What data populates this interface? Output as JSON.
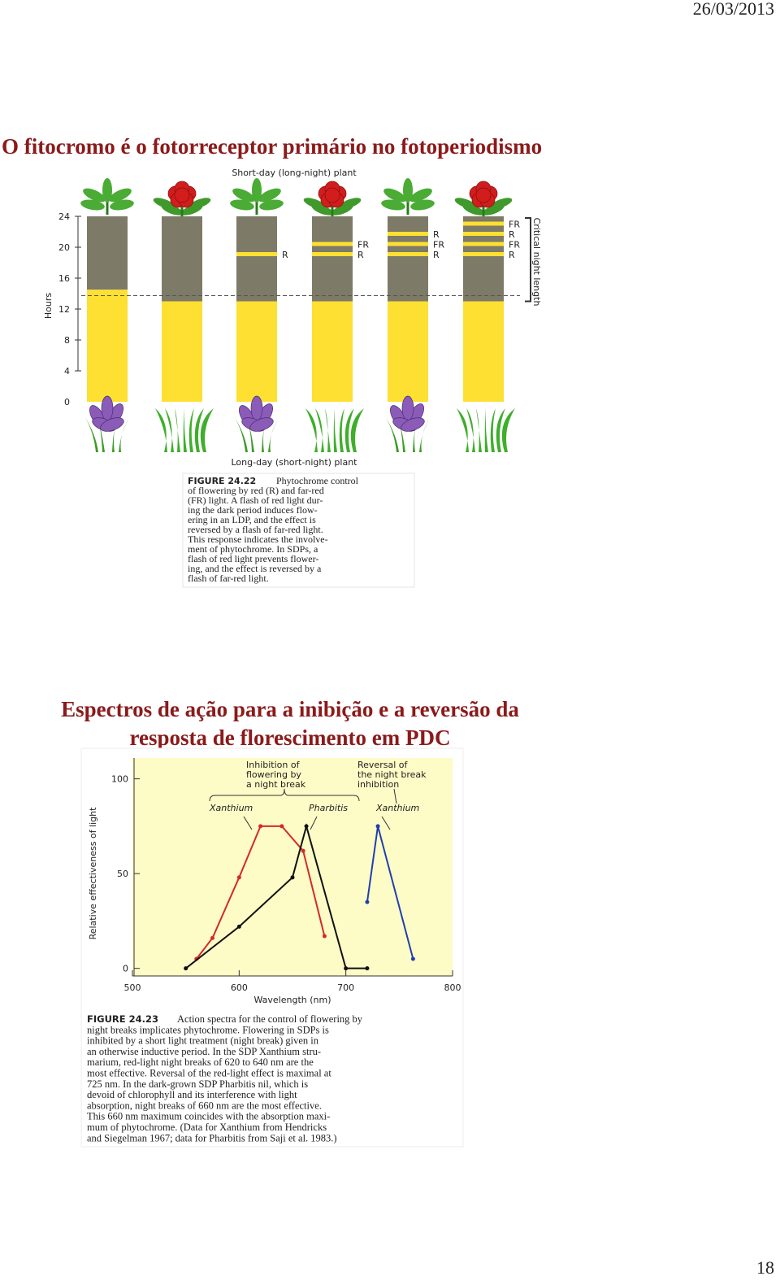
{
  "header": {
    "date": "26/03/2013"
  },
  "section1": {
    "title": "O fitocromo é o fotorreceptor primário no fotoperiodismo"
  },
  "figure1": {
    "top_label": "Short-day (long-night) plant",
    "bottom_label": "Long-day (short-night) plant",
    "y_label": "Hours",
    "ylim": [
      0,
      24
    ],
    "yticks": [
      0,
      4,
      8,
      12,
      16,
      20,
      24
    ],
    "critical_label": "Critical night length",
    "bars": [
      {
        "light": 14.5,
        "flashes": []
      },
      {
        "light": 13,
        "flashes": []
      },
      {
        "light": 13,
        "flashes": [
          "R"
        ]
      },
      {
        "light": 13,
        "flashes": [
          "FR",
          "R"
        ]
      },
      {
        "light": 13,
        "flashes": [
          "R",
          "FR",
          "R"
        ]
      },
      {
        "light": 13,
        "flashes": [
          "FR",
          "R",
          "FR",
          "R"
        ]
      }
    ],
    "caption": {
      "label": "FIGURE 24.22",
      "lines": [
        "Phytochrome control",
        "of flowering by red (R) and far-red",
        "(FR) light. A flash of red light dur-",
        "ing the dark period induces flow-",
        "ering in an LDP, and the effect is",
        "reversed by a flash of far-red light.",
        "This response indicates the involve-",
        "ment of phytochrome. In SDPs, a",
        "flash of red light prevents flower-",
        "ing, and the effect is reversed by a",
        "flash of far-red light."
      ]
    }
  },
  "section2": {
    "title_lines": [
      "Espectros de ação para a inibição e a reversão da",
      "resposta de florescimento em PDC"
    ]
  },
  "figure2": {
    "chart": {
      "type": "line",
      "x_label": "Wavelength (nm)",
      "y_label": "Relative effectiveness of light",
      "xlim": [
        500,
        800
      ],
      "xticks": [
        500,
        600,
        700,
        800
      ],
      "ylim": [
        -4,
        111
      ],
      "yticks": [
        0,
        50,
        100
      ],
      "annotations": [
        {
          "lines": [
            "Inhibition of",
            "flowering by",
            "a night break"
          ]
        },
        {
          "lines": [
            "Reversal of",
            "the night break",
            "inhibition"
          ]
        }
      ],
      "series": [
        {
          "name": "Xanthium",
          "color": "#d42a2a",
          "x": [
            560,
            575,
            600,
            620,
            640,
            660,
            680
          ],
          "values": [
            5,
            16,
            48,
            75,
            75,
            62,
            17
          ]
        },
        {
          "name": "Pharbitis",
          "color": "#111111",
          "x": [
            550,
            600,
            650,
            663,
            700,
            720
          ],
          "values": [
            0,
            22,
            48,
            75,
            0,
            0
          ]
        },
        {
          "name": "Xanthium",
          "color": "#1f3fb0",
          "x": [
            720,
            730,
            763
          ],
          "values": [
            35,
            75,
            5
          ]
        }
      ]
    },
    "caption": {
      "label": "FIGURE 24.23",
      "lines": [
        "Action spectra for the control of flowering by",
        "night breaks implicates phytochrome. Flowering in SDPs is",
        "inhibited by a short light treatment (night break) given in",
        "an otherwise inductive period. In the SDP Xanthium stru-",
        "marium, red-light night breaks of 620 to 640 nm are the",
        "most effective. Reversal of the red-light effect is maximal at",
        "725 nm. In the dark-grown SDP Pharbitis nil, which is",
        "devoid of chlorophyll and its interference with light",
        "absorption, night breaks of 660 nm are the most effective.",
        "This 660 nm maximum coincides with the absorption maxi-",
        "mum of phytochrome. (Data for Xanthium from Hendricks",
        "and Siegelman 1967; data for Pharbitis from Saji et al. 1983.)"
      ]
    }
  },
  "footer": {
    "page": "18"
  }
}
